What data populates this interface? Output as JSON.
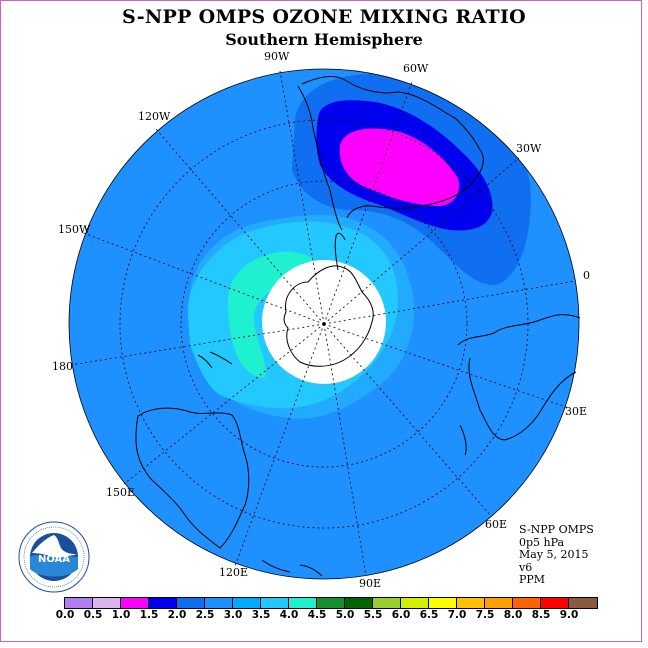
{
  "title": "S-NPP OMPS OZONE MIXING RATIO",
  "subtitle": "Southern Hemisphere",
  "longitude_labels": {
    "lon_90w": "90W",
    "lon_60w": "60W",
    "lon_120w": "120W",
    "lon_30w": "30W",
    "lon_150w": "150W",
    "lon_0": "0",
    "lon_180": "180",
    "lon_30e": "30E",
    "lon_150e": "150E",
    "lon_60e": "60E",
    "lon_120e": "120E",
    "lon_90e": "90E"
  },
  "info": {
    "instrument": "S-NPP OMPS",
    "level": "0p5 hPa",
    "date": "May 5, 2015",
    "version": "v6",
    "units": "PPM"
  },
  "logo": {
    "text": "NOAA"
  },
  "colorbar": {
    "colors": [
      "#b07ef0",
      "#d8b4f0",
      "#ff00ff",
      "#0000ee",
      "#0f6ff0",
      "#1e90ff",
      "#00aaff",
      "#22c8ff",
      "#1ef0d0",
      "#168f33",
      "#006400",
      "#9acd32",
      "#d0f000",
      "#ffff00",
      "#ffc000",
      "#ffa000",
      "#ff6000",
      "#ff0000",
      "#8b5a3c"
    ],
    "labels": [
      "0.0",
      "0.5",
      "1.0",
      "1.5",
      "2.0",
      "2.5",
      "3.0",
      "3.5",
      "4.0",
      "4.5",
      "5.0",
      "5.5",
      "6.0",
      "6.5",
      "7.0",
      "7.5",
      "8.0",
      "8.5",
      "9.0"
    ]
  },
  "map_colors": {
    "background_field": "#1e90ff",
    "band_3_0": "#22aaff",
    "band_3_5": "#22c8ff",
    "band_4_0": "#1ef0d0",
    "band_2_0": "#0f6ff0",
    "band_1_5": "#0000ee",
    "band_1_0": "#ff00ff",
    "missing": "#ffffff"
  }
}
